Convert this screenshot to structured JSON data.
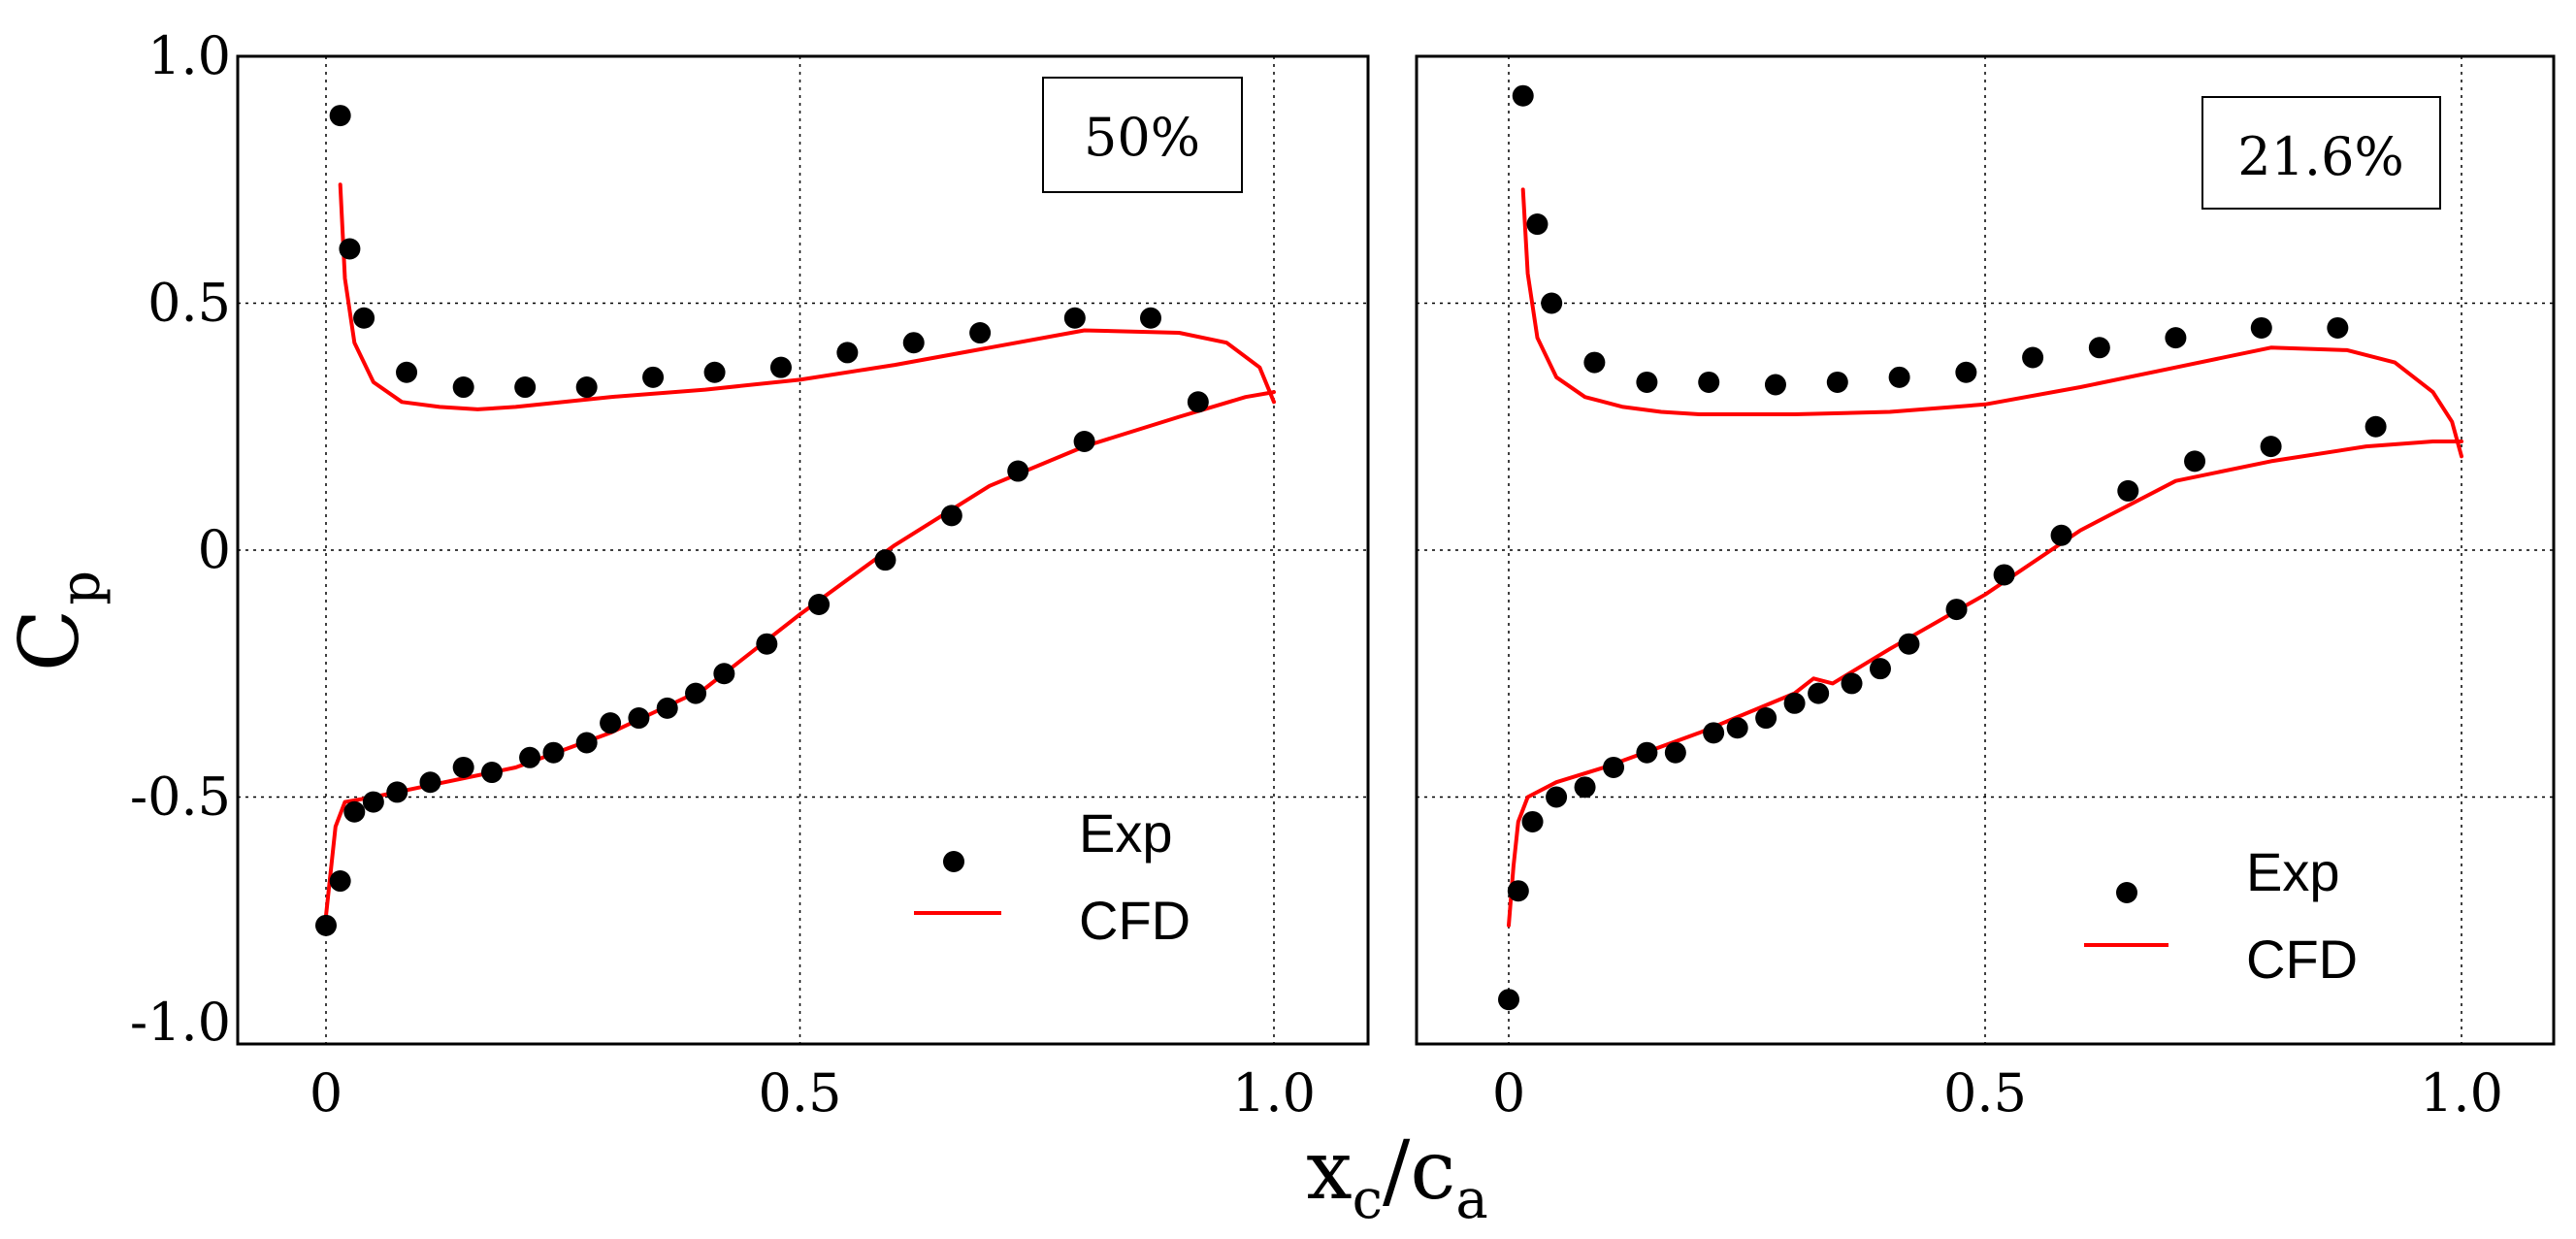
{
  "chart_data": {
    "type": "scatter",
    "x_axis": {
      "label_main": "x",
      "label_main_sub": "c",
      "label_sep": "/",
      "label_den": "c",
      "label_den_sub": "a",
      "ticks": [
        "0",
        "0.5",
        "1.0"
      ],
      "tick_values": [
        0,
        0.5,
        1.0
      ],
      "range": [
        -0.1,
        1.1
      ]
    },
    "y_axis": {
      "label_main": "C",
      "label_sub": "p",
      "ticks": [
        "1.0",
        "0.5",
        "0",
        "-0.5",
        "-1.0"
      ],
      "tick_values": [
        1.0,
        0.5,
        0,
        -0.5,
        -1.0
      ],
      "range": [
        -1.0,
        1.0
      ]
    },
    "grid": true,
    "legend": {
      "exp_label": "Exp",
      "cfd_label": "CFD",
      "placement": "bottom-right"
    },
    "colors": {
      "exp": "#000000",
      "cfd": "#ff0000"
    },
    "panels": [
      {
        "span_label": "50%",
        "exp_upper": {
          "x": [
            0.015,
            0.025,
            0.04,
            0.085,
            0.145,
            0.21,
            0.275,
            0.345,
            0.41,
            0.48,
            0.55,
            0.62,
            0.69,
            0.79,
            0.87
          ],
          "y": [
            0.88,
            0.61,
            0.47,
            0.36,
            0.33,
            0.33,
            0.33,
            0.35,
            0.36,
            0.37,
            0.4,
            0.42,
            0.44,
            0.47,
            0.47
          ]
        },
        "exp_lower": {
          "x": [
            0.0,
            0.015,
            0.03,
            0.05,
            0.075,
            0.11,
            0.145,
            0.175,
            0.215,
            0.24,
            0.275,
            0.3,
            0.33,
            0.36,
            0.39,
            0.42,
            0.465,
            0.52,
            0.59,
            0.66,
            0.73,
            0.8,
            0.92
          ],
          "y": [
            -0.76,
            -0.67,
            -0.53,
            -0.51,
            -0.49,
            -0.47,
            -0.44,
            -0.45,
            -0.42,
            -0.41,
            -0.39,
            -0.35,
            -0.34,
            -0.32,
            -0.29,
            -0.25,
            -0.19,
            -0.11,
            -0.02,
            0.07,
            0.16,
            0.22,
            0.3
          ]
        },
        "cfd_upper": {
          "x": [
            0.015,
            0.02,
            0.03,
            0.05,
            0.08,
            0.12,
            0.16,
            0.2,
            0.3,
            0.4,
            0.5,
            0.6,
            0.7,
            0.8,
            0.9,
            0.95,
            0.985,
            1.0
          ],
          "y": [
            0.74,
            0.55,
            0.42,
            0.34,
            0.3,
            0.29,
            0.285,
            0.29,
            0.31,
            0.325,
            0.345,
            0.375,
            0.41,
            0.445,
            0.44,
            0.42,
            0.37,
            0.3
          ]
        },
        "cfd_lower": {
          "x": [
            0.0,
            0.005,
            0.01,
            0.02,
            0.05,
            0.1,
            0.2,
            0.3,
            0.4,
            0.5,
            0.6,
            0.7,
            0.8,
            0.9,
            0.97,
            1.0
          ],
          "y": [
            -0.74,
            -0.65,
            -0.56,
            -0.51,
            -0.5,
            -0.48,
            -0.44,
            -0.37,
            -0.28,
            -0.13,
            0.01,
            0.13,
            0.21,
            0.27,
            0.31,
            0.32
          ]
        }
      },
      {
        "span_label": "21.6%",
        "exp_upper": {
          "x": [
            0.015,
            0.03,
            0.045,
            0.09,
            0.145,
            0.21,
            0.28,
            0.345,
            0.41,
            0.48,
            0.55,
            0.62,
            0.7,
            0.79,
            0.87
          ],
          "y": [
            0.92,
            0.66,
            0.5,
            0.38,
            0.34,
            0.34,
            0.335,
            0.34,
            0.35,
            0.36,
            0.39,
            0.41,
            0.43,
            0.45,
            0.45
          ]
        },
        "exp_lower": {
          "x": [
            0.0,
            0.01,
            0.025,
            0.05,
            0.08,
            0.11,
            0.145,
            0.175,
            0.215,
            0.24,
            0.27,
            0.3,
            0.325,
            0.36,
            0.39,
            0.42,
            0.47,
            0.52,
            0.58,
            0.65,
            0.72,
            0.8,
            0.91
          ],
          "y": [
            -0.91,
            -0.69,
            -0.55,
            -0.5,
            -0.48,
            -0.44,
            -0.41,
            -0.41,
            -0.37,
            -0.36,
            -0.34,
            -0.31,
            -0.29,
            -0.27,
            -0.24,
            -0.19,
            -0.12,
            -0.05,
            0.03,
            0.12,
            0.18,
            0.21,
            0.25
          ]
        },
        "cfd_upper": {
          "x": [
            0.015,
            0.02,
            0.03,
            0.05,
            0.08,
            0.12,
            0.16,
            0.2,
            0.3,
            0.4,
            0.5,
            0.6,
            0.7,
            0.8,
            0.88,
            0.93,
            0.97,
            0.99,
            1.0
          ],
          "y": [
            0.73,
            0.56,
            0.43,
            0.35,
            0.31,
            0.29,
            0.28,
            0.275,
            0.275,
            0.28,
            0.295,
            0.33,
            0.37,
            0.41,
            0.405,
            0.38,
            0.32,
            0.26,
            0.19
          ]
        },
        "cfd_lower": {
          "x": [
            0.0,
            0.005,
            0.01,
            0.02,
            0.05,
            0.1,
            0.2,
            0.3,
            0.32,
            0.34,
            0.4,
            0.5,
            0.6,
            0.7,
            0.8,
            0.9,
            0.97,
            1.0
          ],
          "y": [
            -0.76,
            -0.64,
            -0.55,
            -0.5,
            -0.47,
            -0.44,
            -0.37,
            -0.29,
            -0.26,
            -0.27,
            -0.2,
            -0.09,
            0.04,
            0.14,
            0.18,
            0.21,
            0.22,
            0.22
          ]
        }
      }
    ]
  }
}
